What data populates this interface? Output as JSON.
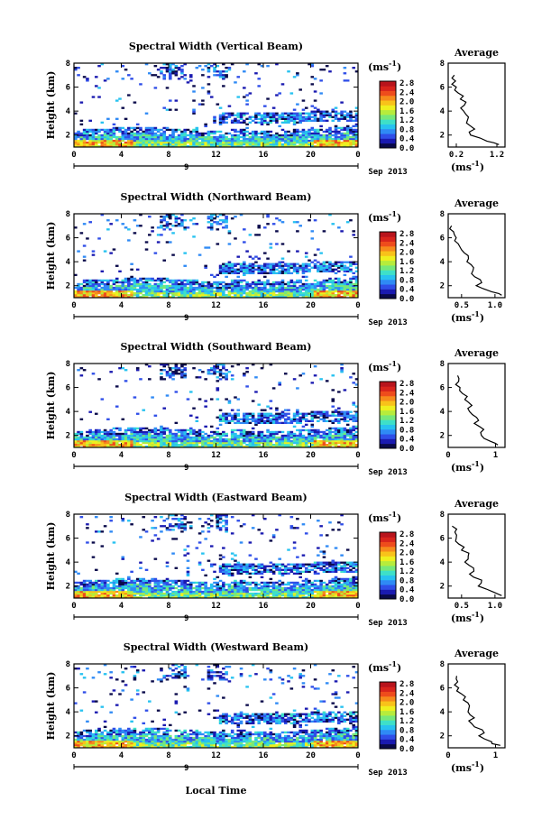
{
  "figure": {
    "xlabel": "Local Time",
    "date_label": "Sep 2013",
    "day_label": "9",
    "unit_label": "(ms",
    "unit_exp": "-1",
    "unit_close": ")",
    "ylabel": "Height (km)",
    "avg_title": "Average"
  },
  "colorbar": {
    "ticks": [
      "2.8",
      "2.4",
      "2.0",
      "1.6",
      "1.2",
      "0.8",
      "0.4",
      "0.0"
    ],
    "colors": [
      "#0a0a4a",
      "#1a1ab0",
      "#2f4ee8",
      "#2f8af5",
      "#27c2f0",
      "#3ee0c8",
      "#76e87a",
      "#b6ec3c",
      "#eef01e",
      "#f8c21a",
      "#f68a1c",
      "#ee4c1c",
      "#d8241c",
      "#b8141c"
    ]
  },
  "chart_data": [
    {
      "type": "heatmap",
      "title": "Spectral Width (Vertical Beam)",
      "xlabel": "Local Time",
      "ylabel": "Height (km)",
      "xticks": [
        "0",
        "4",
        "8",
        "12",
        "16",
        "20",
        "0"
      ],
      "yticks": [
        "2",
        "4",
        "6",
        "8"
      ],
      "xlim": [
        0,
        24
      ],
      "ylim": [
        1,
        8
      ],
      "colorbar_label": "(ms-1)",
      "colorbar_range": [
        0.0,
        2.8
      ],
      "average_profile": {
        "title": "Average",
        "xlabel": "(ms-1)",
        "xticks": [
          "0.2",
          "1.2"
        ],
        "yticks": [
          "2",
          "4",
          "6",
          "8"
        ],
        "xlim": [
          0.0,
          1.4
        ],
        "height": [
          1.2,
          1.5,
          2.0,
          2.5,
          3.0,
          3.5,
          4.0,
          4.5,
          5.0,
          5.5,
          6.0,
          6.5,
          7.0
        ],
        "width": [
          1.25,
          0.95,
          0.55,
          0.65,
          0.45,
          0.5,
          0.38,
          0.4,
          0.3,
          0.25,
          0.2,
          0.18,
          0.15
        ]
      }
    },
    {
      "type": "heatmap",
      "title": "Spectral Width (Northward Beam)",
      "xlabel": "Local Time",
      "ylabel": "Height (km)",
      "xticks": [
        "0",
        "4",
        "8",
        "12",
        "16",
        "20",
        "0"
      ],
      "yticks": [
        "2",
        "4",
        "6",
        "8"
      ],
      "xlim": [
        0,
        24
      ],
      "ylim": [
        1,
        8
      ],
      "colorbar_label": "(ms-1)",
      "colorbar_range": [
        0.0,
        2.8
      ],
      "average_profile": {
        "title": "Average",
        "xlabel": "(ms-1)",
        "xticks": [
          "0.5",
          "1.0"
        ],
        "yticks": [
          "2",
          "4",
          "6",
          "8"
        ],
        "xlim": [
          0.3,
          1.15
        ],
        "height": [
          1.2,
          1.5,
          2.0,
          2.5,
          3.0,
          3.5,
          4.0,
          4.5,
          5.0,
          5.5,
          6.0,
          6.5,
          7.0
        ],
        "width": [
          1.1,
          0.95,
          0.72,
          0.78,
          0.65,
          0.68,
          0.58,
          0.6,
          0.5,
          0.45,
          0.42,
          0.38,
          0.35
        ]
      }
    },
    {
      "type": "heatmap",
      "title": "Spectral Width (Southward Beam)",
      "xlabel": "Local Time",
      "ylabel": "Height (km)",
      "xticks": [
        "0",
        "4",
        "8",
        "12",
        "16",
        "20",
        "0"
      ],
      "yticks": [
        "2",
        "4",
        "6",
        "8"
      ],
      "xlim": [
        0,
        24
      ],
      "ylim": [
        1,
        8
      ],
      "colorbar_label": "(ms-1)",
      "colorbar_range": [
        0.0,
        2.8
      ],
      "average_profile": {
        "title": "Average",
        "xlabel": "(ms-1)",
        "xticks": [
          "0",
          "1"
        ],
        "yticks": [
          "2",
          "4",
          "6",
          "8"
        ],
        "xlim": [
          0.0,
          1.2
        ],
        "height": [
          1.2,
          1.5,
          2.0,
          2.5,
          3.0,
          3.5,
          4.0,
          4.5,
          5.0,
          5.5,
          6.0,
          6.5,
          7.0
        ],
        "width": [
          1.05,
          0.9,
          0.7,
          0.75,
          0.55,
          0.6,
          0.45,
          0.5,
          0.35,
          0.3,
          0.25,
          0.22,
          0.2
        ]
      }
    },
    {
      "type": "heatmap",
      "title": "Spectral Width (Eastward Beam)",
      "xlabel": "Local Time",
      "ylabel": "Height (km)",
      "xticks": [
        "0",
        "4",
        "8",
        "12",
        "16",
        "20",
        "0"
      ],
      "yticks": [
        "2",
        "4",
        "6",
        "8"
      ],
      "xlim": [
        0,
        24
      ],
      "ylim": [
        1,
        8
      ],
      "colorbar_label": "(ms-1)",
      "colorbar_range": [
        0.0,
        2.8
      ],
      "average_profile": {
        "title": "Average",
        "xlabel": "(ms-1)",
        "xticks": [
          "0.5",
          "1.0"
        ],
        "yticks": [
          "2",
          "4",
          "6",
          "8"
        ],
        "xlim": [
          0.3,
          1.15
        ],
        "height": [
          1.2,
          1.5,
          2.0,
          2.5,
          3.0,
          3.5,
          4.0,
          4.5,
          5.0,
          5.5,
          6.0,
          6.5,
          7.0
        ],
        "width": [
          1.1,
          0.98,
          0.75,
          0.8,
          0.62,
          0.68,
          0.55,
          0.6,
          0.5,
          0.46,
          0.42,
          0.4,
          0.36
        ]
      }
    },
    {
      "type": "heatmap",
      "title": "Spectral Width (Westward Beam)",
      "xlabel": "Local Time",
      "ylabel": "Height (km)",
      "xticks": [
        "0",
        "4",
        "8",
        "12",
        "16",
        "20",
        "0"
      ],
      "yticks": [
        "2",
        "4",
        "6",
        "8"
      ],
      "xlim": [
        0,
        24
      ],
      "ylim": [
        1,
        8
      ],
      "colorbar_label": "(ms-1)",
      "colorbar_range": [
        0.0,
        2.8
      ],
      "average_profile": {
        "title": "Average",
        "xlabel": "(ms-1)",
        "xticks": [
          "0",
          "1"
        ],
        "yticks": [
          "2",
          "4",
          "6",
          "8"
        ],
        "xlim": [
          0.0,
          1.2
        ],
        "height": [
          1.2,
          1.5,
          2.0,
          2.5,
          3.0,
          3.5,
          4.0,
          4.5,
          5.0,
          5.5,
          6.0,
          6.5,
          7.0
        ],
        "width": [
          1.1,
          0.92,
          0.65,
          0.72,
          0.5,
          0.55,
          0.42,
          0.45,
          0.32,
          0.28,
          0.22,
          0.2,
          0.18
        ]
      }
    }
  ]
}
